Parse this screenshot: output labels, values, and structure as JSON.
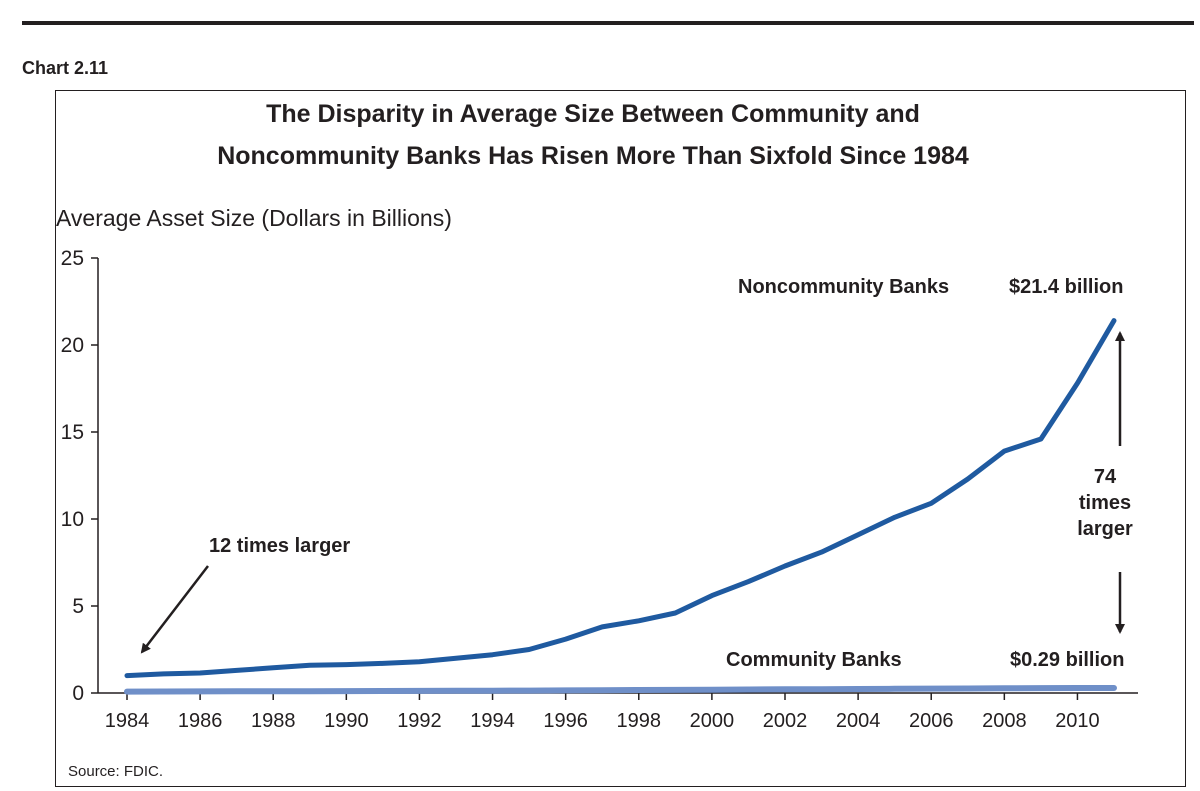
{
  "header": {
    "chart_number": "Chart 2.11"
  },
  "source": "Source: FDIC.",
  "chart_data": {
    "type": "line",
    "title": [
      "The Disparity in Average Size Between Community and",
      "Noncommunity Banks Has Risen More Than Sixfold Since 1984"
    ],
    "ylabel": "Average Asset Size (Dollars in Billions)",
    "xlabel": "",
    "ylim": [
      0,
      25
    ],
    "yticks": [
      0,
      5,
      10,
      15,
      20,
      25
    ],
    "xlim": [
      1984,
      2011
    ],
    "xticks": [
      1984,
      1986,
      1988,
      1990,
      1992,
      1994,
      1996,
      1998,
      2000,
      2002,
      2004,
      2006,
      2008,
      2010
    ],
    "grid": false,
    "x": [
      1984,
      1985,
      1986,
      1987,
      1988,
      1989,
      1990,
      1991,
      1992,
      1993,
      1994,
      1995,
      1996,
      1997,
      1998,
      1999,
      2000,
      2001,
      2002,
      2003,
      2004,
      2005,
      2006,
      2007,
      2008,
      2009,
      2010,
      2011
    ],
    "series": [
      {
        "name": "Noncommunity Banks",
        "color": "#1f5aa0",
        "values": [
          1.0,
          1.1,
          1.15,
          1.3,
          1.45,
          1.6,
          1.63,
          1.7,
          1.8,
          2.0,
          2.2,
          2.5,
          3.1,
          3.8,
          4.15,
          4.6,
          5.6,
          6.4,
          7.3,
          8.1,
          9.1,
          10.1,
          10.9,
          12.3,
          13.9,
          14.6,
          17.8,
          21.4
        ]
      },
      {
        "name": "Community Banks",
        "color": "#6f8fc8",
        "values": [
          0.08,
          0.085,
          0.09,
          0.095,
          0.1,
          0.105,
          0.11,
          0.115,
          0.12,
          0.125,
          0.13,
          0.14,
          0.15,
          0.16,
          0.17,
          0.18,
          0.19,
          0.2,
          0.21,
          0.22,
          0.23,
          0.24,
          0.25,
          0.26,
          0.27,
          0.28,
          0.285,
          0.29
        ]
      }
    ],
    "annotations": {
      "ratio_1984": "12 times larger",
      "ratio_2011_line1": "74",
      "ratio_2011_line2": "times",
      "ratio_2011_line3": "larger",
      "noncommunity_value": "$21.4 billion",
      "community_value": "$0.29 billion"
    }
  }
}
